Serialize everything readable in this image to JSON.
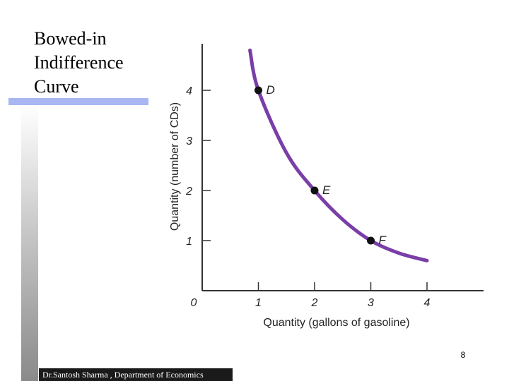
{
  "slide": {
    "title_lines": [
      "Bowed-in",
      "Indifference",
      "Curve"
    ],
    "footer": "Dr.Santosh Sharma , Department of Economics",
    "page_number": "8"
  },
  "colors": {
    "curve": "#7a3ea8",
    "axis": "#333333",
    "point": "#111111",
    "accent_bar": "#a8b7f2"
  },
  "chart_data": {
    "type": "line",
    "title": "",
    "xlabel": "Quantity (gallons of gasoline)",
    "ylabel": "Quantity (number of CDs)",
    "xlim": [
      0,
      4.0
    ],
    "ylim": [
      0,
      4.0
    ],
    "x_ticks": [
      "0",
      "1",
      "2",
      "3",
      "4"
    ],
    "y_ticks": [
      "1",
      "2",
      "3",
      "4"
    ],
    "grid": false,
    "series": [
      {
        "type": "curve",
        "points": [
          [
            0.85,
            4.8
          ],
          [
            1.0,
            4.0
          ],
          [
            1.5,
            2.75
          ],
          [
            2.0,
            2.0
          ],
          [
            2.5,
            1.42
          ],
          [
            3.0,
            1.0
          ],
          [
            3.5,
            0.75
          ],
          [
            4.0,
            0.6
          ]
        ]
      }
    ],
    "labeled_points": [
      {
        "label": "D",
        "x": 1,
        "y": 4
      },
      {
        "label": "E",
        "x": 2,
        "y": 2
      },
      {
        "label": "F",
        "x": 3,
        "y": 1
      }
    ]
  }
}
